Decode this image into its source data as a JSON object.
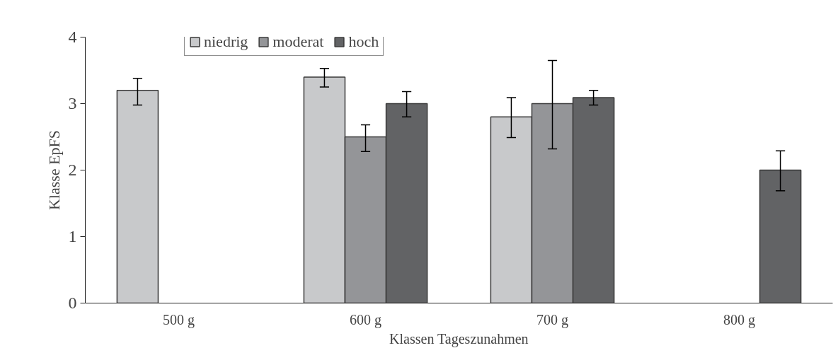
{
  "chart_data": {
    "type": "bar",
    "xlabel": "Klassen Tageszunahmen",
    "ylabel": "Klasse EpFS",
    "categories": [
      "500 g",
      "600 g",
      "700 g",
      "800 g"
    ],
    "series": [
      {
        "name": "niedrig",
        "color": "#c8c9cb",
        "values": [
          3.2,
          3.4,
          2.8,
          null
        ],
        "errors": [
          [
            2.98,
            3.38
          ],
          [
            3.25,
            3.53
          ],
          [
            2.49,
            3.09
          ],
          null
        ]
      },
      {
        "name": "moderat",
        "color": "#949598",
        "values": [
          null,
          2.5,
          3.0,
          null
        ],
        "errors": [
          null,
          [
            2.28,
            2.68
          ],
          [
            2.32,
            3.65
          ],
          null
        ]
      },
      {
        "name": "hoch",
        "color": "#626365",
        "values": [
          null,
          3.0,
          3.09,
          2.0
        ],
        "errors": [
          null,
          [
            2.8,
            3.18
          ],
          [
            2.98,
            3.2
          ],
          [
            1.69,
            2.29
          ]
        ]
      }
    ],
    "ylim": [
      0,
      4
    ],
    "yticks": [
      0,
      1,
      2,
      3,
      4
    ],
    "grid": false,
    "legend": "top"
  }
}
